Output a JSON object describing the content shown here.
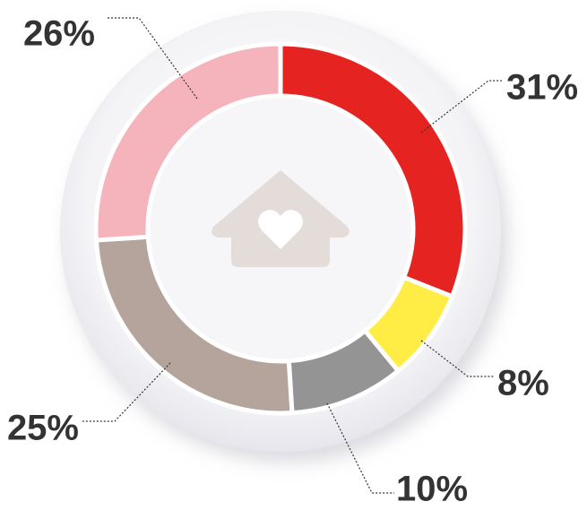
{
  "chart_data": {
    "type": "donut",
    "values": [
      31,
      8,
      10,
      25,
      26
    ],
    "value_labels": [
      "31%",
      "8%",
      "10%",
      "25%",
      "26%"
    ],
    "colors": [
      "#e52421",
      "#ffec45",
      "#949494",
      "#b5a49c",
      "#f5b3bb"
    ]
  }
}
